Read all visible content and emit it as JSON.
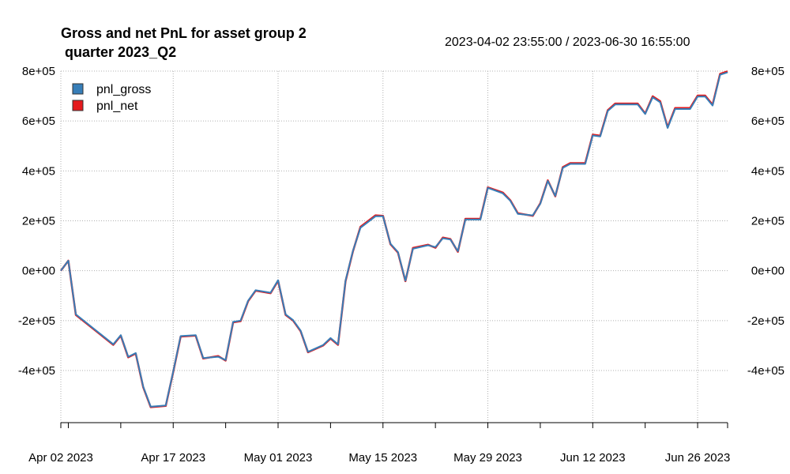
{
  "chart_data": {
    "type": "line",
    "title_line1": "Gross and net PnL for asset group 2",
    "title_line2": " quarter 2023_Q2",
    "date_range": "2023-04-02 23:55:00 / 2023-06-30 16:55:00",
    "ylim": [
      -600000,
      800000
    ],
    "y_ticks": [
      {
        "value": 800000,
        "label": "8e+05"
      },
      {
        "value": 600000,
        "label": "6e+05"
      },
      {
        "value": 400000,
        "label": "4e+05"
      },
      {
        "value": 200000,
        "label": "2e+05"
      },
      {
        "value": 0,
        "label": "0e+00"
      },
      {
        "value": -200000,
        "label": "-2e+05"
      },
      {
        "value": -400000,
        "label": "-4e+05"
      }
    ],
    "x_range": [
      "2023-04-02",
      "2023-06-30"
    ],
    "x_labels": [
      {
        "date": "2023-04-02",
        "label": "Apr 02 2023"
      },
      {
        "date": "2023-04-17",
        "label": "Apr 17 2023"
      },
      {
        "date": "2023-05-01",
        "label": "May 01 2023"
      },
      {
        "date": "2023-05-15",
        "label": "May 15 2023"
      },
      {
        "date": "2023-05-29",
        "label": "May 29 2023"
      },
      {
        "date": "2023-06-12",
        "label": "Jun 12 2023"
      },
      {
        "date": "2023-06-26",
        "label": "Jun 26 2023"
      }
    ],
    "x_minor_ticks": [
      "2023-04-03",
      "2023-04-10",
      "2023-04-24",
      "2023-05-08",
      "2023-05-22",
      "2023-06-05",
      "2023-06-19",
      "2023-06-30"
    ],
    "grid": true,
    "legend_position": "top-left",
    "series": [
      {
        "name": "pnl_gross",
        "color": "#377EB8",
        "points": [
          [
            "2023-04-02",
            0
          ],
          [
            "2023-04-03",
            40000
          ],
          [
            "2023-04-04",
            -175000
          ],
          [
            "2023-04-09",
            -295000
          ],
          [
            "2023-04-10",
            -258000
          ],
          [
            "2023-04-11",
            -345000
          ],
          [
            "2023-04-12",
            -330000
          ],
          [
            "2023-04-13",
            -465000
          ],
          [
            "2023-04-14",
            -545000
          ],
          [
            "2023-04-16",
            -540000
          ],
          [
            "2023-04-17",
            -405000
          ],
          [
            "2023-04-18",
            -262000
          ],
          [
            "2023-04-20",
            -258000
          ],
          [
            "2023-04-21",
            -350000
          ],
          [
            "2023-04-23",
            -345000
          ],
          [
            "2023-04-24",
            -358000
          ],
          [
            "2023-04-25",
            -205000
          ],
          [
            "2023-04-26",
            -200000
          ],
          [
            "2023-04-27",
            -120000
          ],
          [
            "2023-04-28",
            -78000
          ],
          [
            "2023-04-30",
            -88000
          ],
          [
            "2023-05-01",
            -38000
          ],
          [
            "2023-05-02",
            -175000
          ],
          [
            "2023-05-03",
            -198000
          ],
          [
            "2023-05-04",
            -240000
          ],
          [
            "2023-05-05",
            -325000
          ],
          [
            "2023-05-07",
            -298000
          ],
          [
            "2023-05-08",
            -270000
          ],
          [
            "2023-05-09",
            -295000
          ],
          [
            "2023-05-10",
            -40000
          ],
          [
            "2023-05-11",
            80000
          ],
          [
            "2023-05-12",
            172000
          ],
          [
            "2023-05-14",
            218000
          ],
          [
            "2023-05-15",
            218000
          ],
          [
            "2023-05-16",
            108000
          ],
          [
            "2023-05-17",
            75000
          ],
          [
            "2023-05-18",
            -40000
          ],
          [
            "2023-05-19",
            88000
          ],
          [
            "2023-05-21",
            102000
          ],
          [
            "2023-05-22",
            95000
          ],
          [
            "2023-05-23",
            130000
          ],
          [
            "2023-05-24",
            125000
          ],
          [
            "2023-05-25",
            78000
          ],
          [
            "2023-05-26",
            205000
          ],
          [
            "2023-05-28",
            205000
          ],
          [
            "2023-05-29",
            332000
          ],
          [
            "2023-05-31",
            310000
          ],
          [
            "2023-06-01",
            280000
          ],
          [
            "2023-06-02",
            228000
          ],
          [
            "2023-06-04",
            222000
          ],
          [
            "2023-06-05",
            268000
          ],
          [
            "2023-06-06",
            360000
          ],
          [
            "2023-06-07",
            300000
          ],
          [
            "2023-06-08",
            412000
          ],
          [
            "2023-06-09",
            428000
          ],
          [
            "2023-06-11",
            428000
          ],
          [
            "2023-06-12",
            542000
          ],
          [
            "2023-06-13",
            538000
          ],
          [
            "2023-06-14",
            640000
          ],
          [
            "2023-06-15",
            666000
          ],
          [
            "2023-06-18",
            666000
          ],
          [
            "2023-06-19",
            628000
          ],
          [
            "2023-06-20",
            695000
          ],
          [
            "2023-06-21",
            675000
          ],
          [
            "2023-06-22",
            572000
          ],
          [
            "2023-06-23",
            648000
          ],
          [
            "2023-06-25",
            648000
          ],
          [
            "2023-06-26",
            698000
          ],
          [
            "2023-06-27",
            698000
          ],
          [
            "2023-06-28",
            662000
          ],
          [
            "2023-06-29",
            785000
          ],
          [
            "2023-06-30",
            795000
          ]
        ]
      },
      {
        "name": "pnl_net",
        "color": "#E41A1C",
        "points": [
          [
            "2023-04-02",
            0
          ],
          [
            "2023-04-03",
            40000
          ],
          [
            "2023-04-04",
            -177000
          ],
          [
            "2023-04-09",
            -297000
          ],
          [
            "2023-04-10",
            -260000
          ],
          [
            "2023-04-11",
            -347000
          ],
          [
            "2023-04-12",
            -332000
          ],
          [
            "2023-04-13",
            -467000
          ],
          [
            "2023-04-14",
            -547000
          ],
          [
            "2023-04-16",
            -542000
          ],
          [
            "2023-04-17",
            -407000
          ],
          [
            "2023-04-18",
            -264000
          ],
          [
            "2023-04-20",
            -260000
          ],
          [
            "2023-04-21",
            -352000
          ],
          [
            "2023-04-23",
            -342000
          ],
          [
            "2023-04-24",
            -360000
          ],
          [
            "2023-04-25",
            -207000
          ],
          [
            "2023-04-26",
            -202000
          ],
          [
            "2023-04-27",
            -122000
          ],
          [
            "2023-04-28",
            -80000
          ],
          [
            "2023-04-30",
            -90000
          ],
          [
            "2023-05-01",
            -40000
          ],
          [
            "2023-05-02",
            -177000
          ],
          [
            "2023-05-03",
            -200000
          ],
          [
            "2023-05-04",
            -242000
          ],
          [
            "2023-05-05",
            -327000
          ],
          [
            "2023-05-07",
            -300000
          ],
          [
            "2023-05-08",
            -272000
          ],
          [
            "2023-05-09",
            -297000
          ],
          [
            "2023-05-10",
            -42000
          ],
          [
            "2023-05-11",
            78000
          ],
          [
            "2023-05-12",
            176000
          ],
          [
            "2023-05-14",
            222000
          ],
          [
            "2023-05-15",
            220000
          ],
          [
            "2023-05-16",
            106000
          ],
          [
            "2023-05-17",
            73000
          ],
          [
            "2023-05-18",
            -42000
          ],
          [
            "2023-05-19",
            91000
          ],
          [
            "2023-05-21",
            104000
          ],
          [
            "2023-05-22",
            92000
          ],
          [
            "2023-05-23",
            133000
          ],
          [
            "2023-05-24",
            127000
          ],
          [
            "2023-05-25",
            76000
          ],
          [
            "2023-05-26",
            208000
          ],
          [
            "2023-05-28",
            208000
          ],
          [
            "2023-05-29",
            334000
          ],
          [
            "2023-05-31",
            313000
          ],
          [
            "2023-06-01",
            282000
          ],
          [
            "2023-06-02",
            230000
          ],
          [
            "2023-06-04",
            220000
          ],
          [
            "2023-06-05",
            270000
          ],
          [
            "2023-06-06",
            362000
          ],
          [
            "2023-06-07",
            298000
          ],
          [
            "2023-06-08",
            415000
          ],
          [
            "2023-06-09",
            431000
          ],
          [
            "2023-06-11",
            431000
          ],
          [
            "2023-06-12",
            545000
          ],
          [
            "2023-06-13",
            541000
          ],
          [
            "2023-06-14",
            643000
          ],
          [
            "2023-06-15",
            670000
          ],
          [
            "2023-06-18",
            670000
          ],
          [
            "2023-06-19",
            630000
          ],
          [
            "2023-06-20",
            699000
          ],
          [
            "2023-06-21",
            679000
          ],
          [
            "2023-06-22",
            575000
          ],
          [
            "2023-06-23",
            652000
          ],
          [
            "2023-06-25",
            652000
          ],
          [
            "2023-06-26",
            702000
          ],
          [
            "2023-06-27",
            702000
          ],
          [
            "2023-06-28",
            665000
          ],
          [
            "2023-06-29",
            789000
          ],
          [
            "2023-06-30",
            799000
          ]
        ]
      }
    ]
  }
}
